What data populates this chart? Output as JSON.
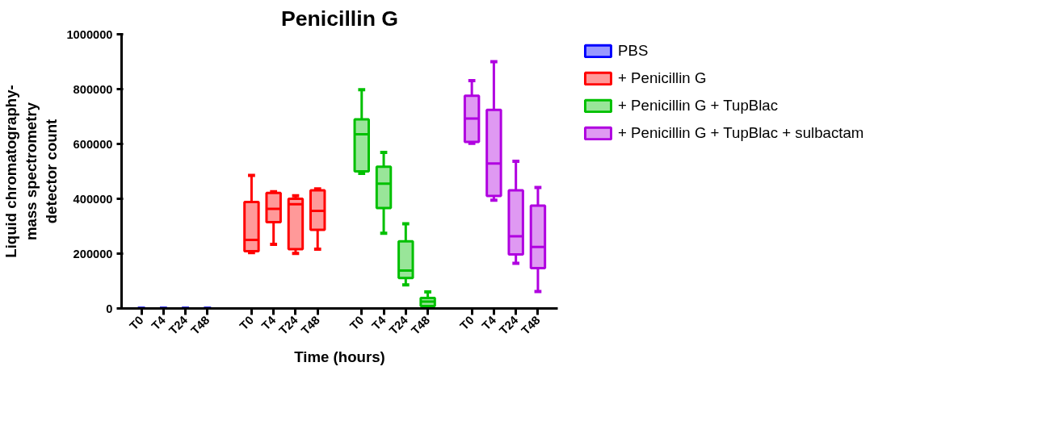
{
  "chart_data": {
    "type": "box",
    "title": "Penicillin G",
    "xlabel": "Time (hours)",
    "ylabel": "Liquid chromatography-mass spectrometry detector count",
    "categories": [
      "T0",
      "T4",
      "T24",
      "T48",
      null,
      "T0",
      "T4",
      "T24",
      "T48",
      null,
      "T0",
      "T4",
      "T24",
      "T48",
      null,
      "T0",
      "T4",
      "T24",
      "T48"
    ],
    "ylim": [
      0,
      1000000
    ],
    "yticks": [
      0,
      200000,
      400000,
      600000,
      800000,
      1000000
    ],
    "legend": "right",
    "series": [
      {
        "name": "PBS",
        "color": "#0000ff",
        "boxes": [
          {
            "low": 0,
            "q1": 0,
            "median": 0,
            "q3": 0,
            "high": 0
          },
          {
            "low": 0,
            "q1": 0,
            "median": 0,
            "q3": 0,
            "high": 0
          },
          {
            "low": 0,
            "q1": 0,
            "median": 0,
            "q3": 0,
            "high": 0
          },
          {
            "low": 0,
            "q1": 0,
            "median": 0,
            "q3": 0,
            "high": 0
          },
          null,
          null,
          null,
          null,
          null,
          null,
          null,
          null,
          null,
          null,
          null,
          null,
          null,
          null,
          null
        ]
      },
      {
        "name": "+ Penicillin G",
        "color": "#ff0000",
        "boxes": [
          null,
          null,
          null,
          null,
          null,
          {
            "low": 204000,
            "q1": 209000,
            "median": 250000,
            "q3": 388000,
            "high": 485000
          },
          {
            "low": 234000,
            "q1": 315000,
            "median": 363000,
            "q3": 421000,
            "high": 426000
          },
          {
            "low": 201000,
            "q1": 216000,
            "median": 380000,
            "q3": 400000,
            "high": 411000
          },
          {
            "low": 216000,
            "q1": 287000,
            "median": 356000,
            "q3": 431000,
            "high": 436000
          },
          null,
          null,
          null,
          null,
          null,
          null,
          null,
          null,
          null,
          null
        ]
      },
      {
        "name": "+ Penicillin G + TupBlac",
        "color": "#00c000",
        "boxes": [
          null,
          null,
          null,
          null,
          null,
          null,
          null,
          null,
          null,
          null,
          {
            "low": 493000,
            "q1": 500000,
            "median": 635000,
            "q3": 690000,
            "high": 798000
          },
          {
            "low": 274000,
            "q1": 366000,
            "median": 455000,
            "q3": 517000,
            "high": 569000
          },
          {
            "low": 86000,
            "q1": 111000,
            "median": 138000,
            "q3": 245000,
            "high": 309000
          },
          {
            "low": 7000,
            "q1": 9000,
            "median": 25000,
            "q3": 38000,
            "high": 60000
          },
          null,
          null,
          null,
          null,
          null
        ]
      },
      {
        "name": "+ Penicillin G + TupBlac + sulbactam",
        "color": "#b000e0",
        "boxes": [
          null,
          null,
          null,
          null,
          null,
          null,
          null,
          null,
          null,
          null,
          null,
          null,
          null,
          null,
          null,
          {
            "low": 602000,
            "q1": 607000,
            "median": 693000,
            "q3": 776000,
            "high": 831000
          },
          {
            "low": 395000,
            "q1": 410000,
            "median": 529000,
            "q3": 724000,
            "high": 900000
          },
          {
            "low": 165000,
            "q1": 197000,
            "median": 263000,
            "q3": 431000,
            "high": 537000
          },
          {
            "low": 62000,
            "q1": 147000,
            "median": 224000,
            "q3": 375000,
            "high": 441000
          }
        ]
      }
    ]
  }
}
